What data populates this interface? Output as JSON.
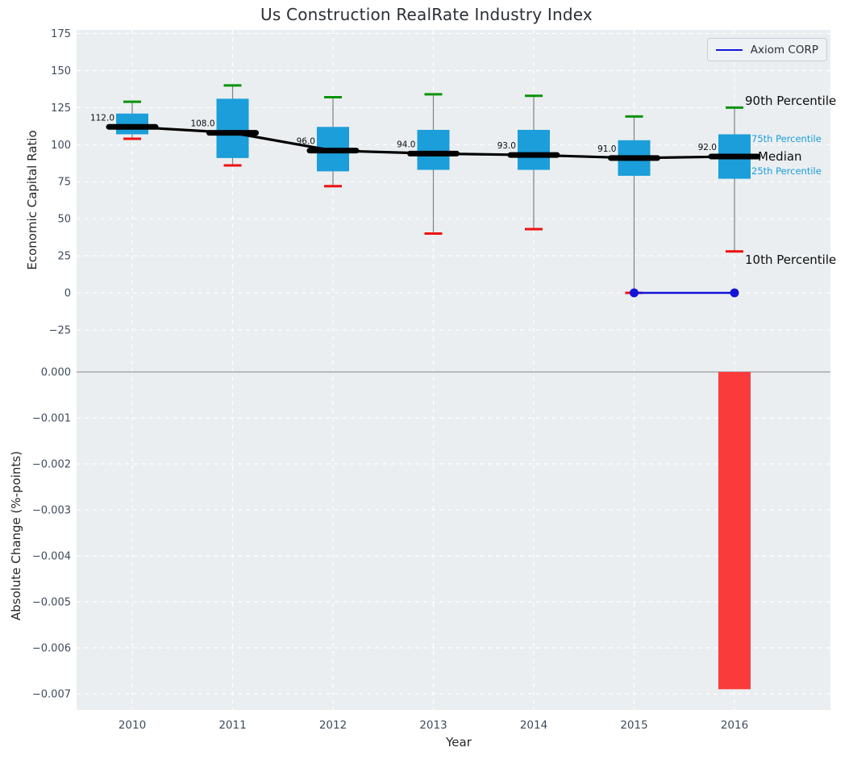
{
  "title": "Us Construction RealRate Industry Index",
  "legend": {
    "label": "Axiom CORP"
  },
  "annotations": {
    "p90": "90th Percentile",
    "p75": "75th Percentile",
    "median": "Median",
    "p25": "25th Percentile",
    "p10": "10th Percentile"
  },
  "axes": {
    "top": {
      "ylabel": "Economic Capital Ratio",
      "ytick_values": [
        175,
        150,
        125,
        100,
        75,
        50,
        25,
        0,
        -25
      ],
      "ytick_labels": [
        "175",
        "150",
        "125",
        "100",
        "75",
        "50",
        "25",
        "0",
        "−25"
      ]
    },
    "bottom": {
      "ylabel": "Absolute Change (%-points)",
      "xlabel": "Year",
      "ytick_values": [
        0,
        -0.001,
        -0.002,
        -0.003,
        -0.004,
        -0.005,
        -0.006,
        -0.007
      ],
      "ytick_labels": [
        "0.000",
        "−0.001",
        "−0.002",
        "−0.003",
        "−0.004",
        "−0.005",
        "−0.006",
        "−0.007"
      ],
      "xtick_labels": [
        "2010",
        "2011",
        "2012",
        "2013",
        "2014",
        "2015",
        "2016"
      ]
    }
  },
  "colors": {
    "panel_bg": "#eaeef1",
    "grid": "#ffffff",
    "tick_label": "#3e4c5e",
    "box_fill": "#1b9ed9",
    "whisker": "#808080",
    "p90_cap": "#0a930a",
    "p10_cap": "#ee1111",
    "median": "#000000",
    "axiom_line": "#1414d8",
    "bar_fill": "#fa3b3b",
    "zero_line": "#a8a8a8"
  },
  "chart_data": [
    {
      "type": "boxplot-line",
      "title": "Us Construction RealRate Industry Index",
      "ylabel": "Economic Capital Ratio",
      "x": [
        2010,
        2011,
        2012,
        2013,
        2014,
        2015,
        2016
      ],
      "ylim": [
        -50,
        178
      ],
      "grid": true,
      "legend_position": "upper right",
      "series": [
        {
          "name": "90th Percentile",
          "values": [
            129,
            140,
            132,
            134,
            133,
            119,
            125
          ]
        },
        {
          "name": "75th Percentile",
          "values": [
            121,
            131,
            112,
            110,
            110,
            103,
            107
          ]
        },
        {
          "name": "Median",
          "values": [
            112,
            108,
            96,
            94,
            93,
            91,
            92
          ]
        },
        {
          "name": "25th Percentile",
          "values": [
            107,
            91,
            82,
            83,
            83,
            79,
            77
          ]
        },
        {
          "name": "10th Percentile",
          "values": [
            104,
            86,
            72,
            40,
            43,
            0,
            28
          ]
        },
        {
          "name": "Axiom CORP",
          "x": [
            2015,
            2016
          ],
          "values": [
            0,
            0
          ]
        }
      ],
      "median_labels": [
        "112.0",
        "108.0",
        "96.0",
        "94.0",
        "93.0",
        "91.0",
        "92.0"
      ]
    },
    {
      "type": "bar",
      "ylabel": "Absolute Change (%-points)",
      "xlabel": "Year",
      "categories": [
        2010,
        2011,
        2012,
        2013,
        2014,
        2015,
        2016
      ],
      "values": [
        0,
        0,
        0,
        0,
        0,
        0,
        -0.0069
      ],
      "ylim": [
        -0.0074,
        0.0001
      ],
      "grid": true
    }
  ]
}
